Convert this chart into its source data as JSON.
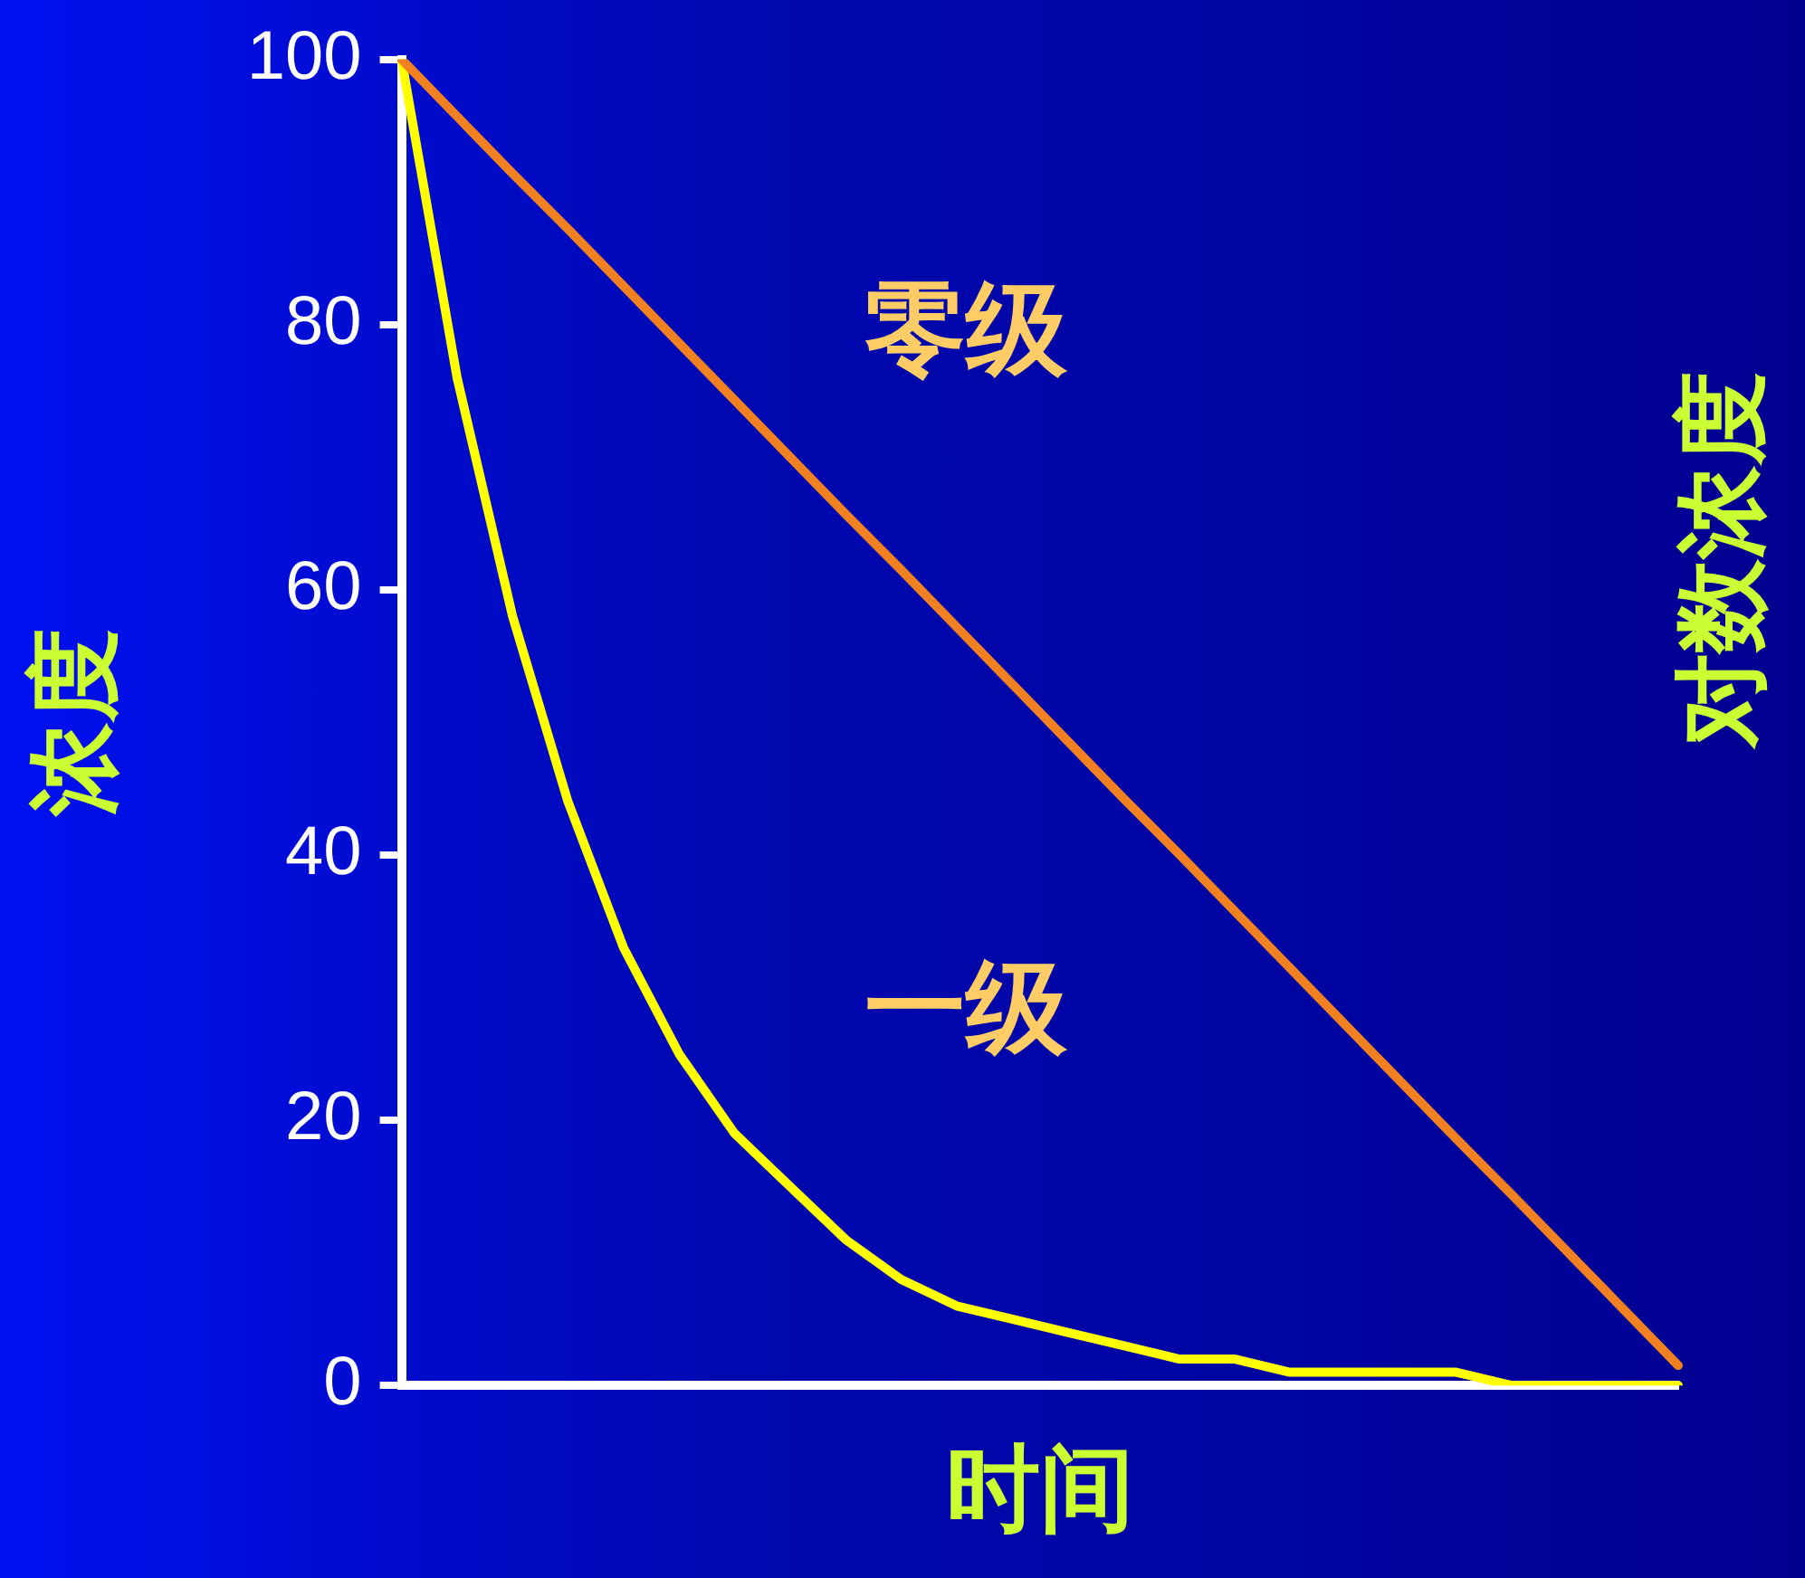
{
  "chart_data": {
    "type": "line",
    "xlabel": "时间",
    "ylabel": "浓度",
    "y2label": "对数浓度",
    "categories": [
      null,
      null,
      null,
      null,
      null,
      null,
      null,
      null,
      null,
      null,
      null,
      null,
      null,
      null,
      null,
      null,
      null,
      null,
      null,
      null,
      null,
      null,
      null,
      null
    ],
    "series": [
      {
        "name": "零级",
        "color": "#f08020",
        "values": [
          100,
          95.7,
          91.4,
          87.2,
          82.9,
          78.6,
          74.3,
          70.0,
          65.7,
          61.5,
          57.2,
          52.9,
          48.6,
          44.3,
          40.1,
          35.8,
          31.5,
          27.2,
          22.9,
          18.6,
          14.4,
          10.1,
          5.8,
          1.5
        ]
      },
      {
        "name": "一级",
        "color": "#ffff00",
        "values": [
          100,
          76,
          58,
          44,
          33,
          25,
          19,
          15,
          11,
          8,
          6,
          5,
          4,
          3,
          2,
          2,
          1,
          1,
          1,
          1,
          0,
          0,
          0,
          0
        ]
      }
    ],
    "ylim": [
      0,
      100
    ],
    "yticks": [
      0,
      20,
      40,
      60,
      80,
      100
    ],
    "grid": false,
    "legend": false,
    "tick_labels": "y",
    "marker": "none",
    "line_style": "solid"
  }
}
